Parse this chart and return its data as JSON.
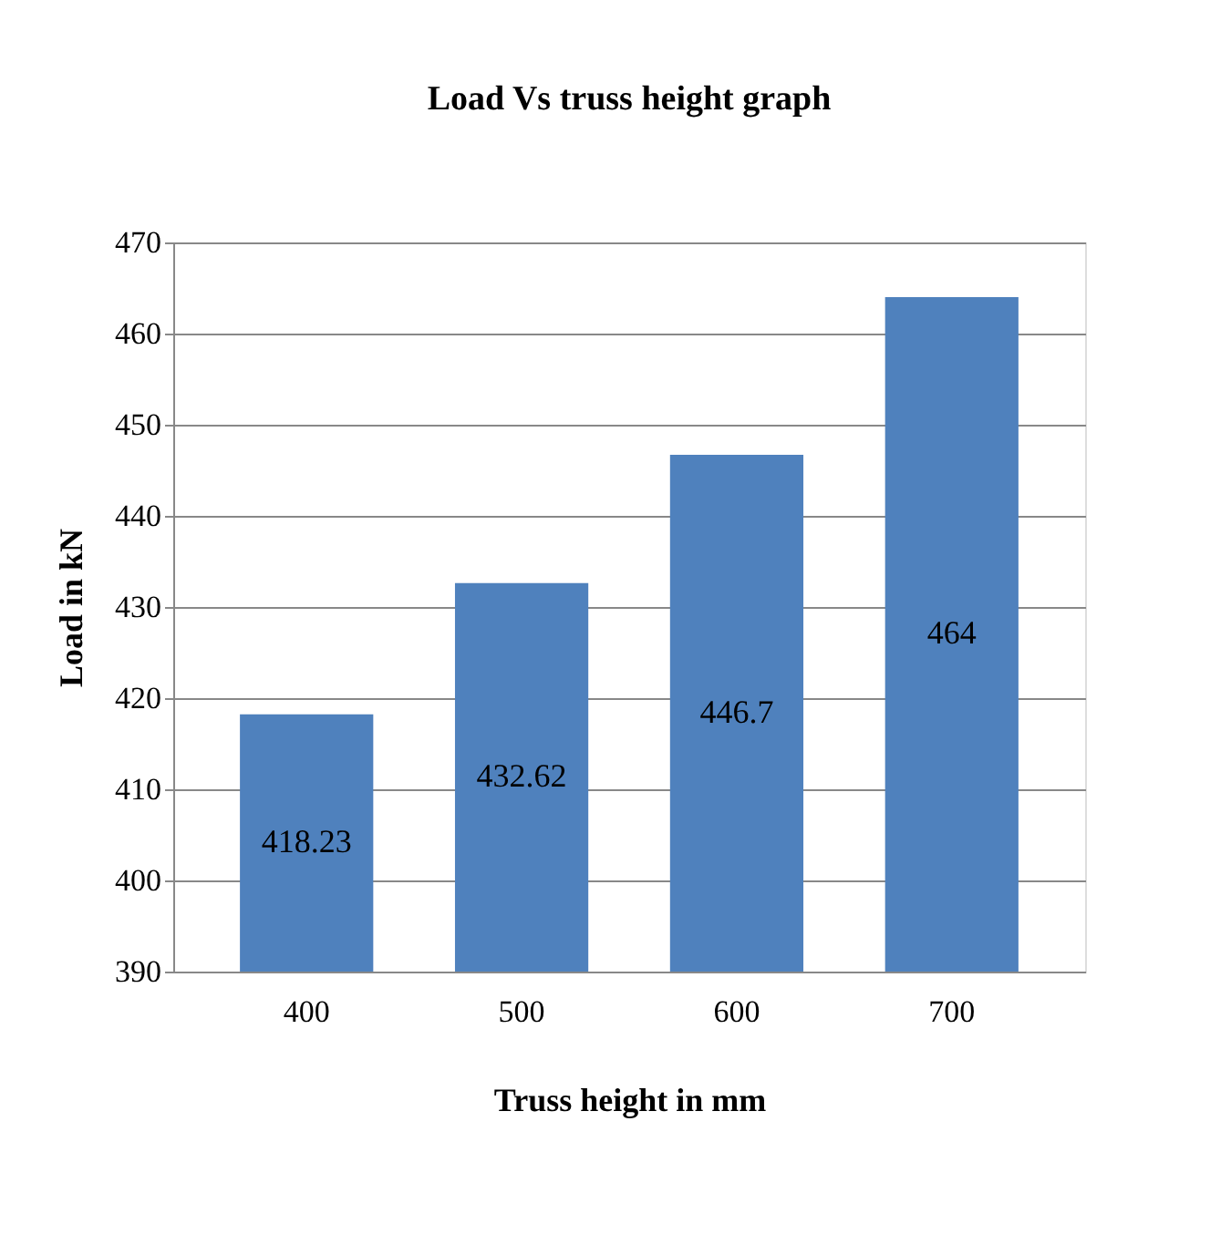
{
  "chart_data": {
    "type": "bar",
    "title": "Load Vs truss height graph",
    "xlabel": "Truss height in mm",
    "ylabel": "Load in kN",
    "categories": [
      "400",
      "500",
      "600",
      "700"
    ],
    "values": [
      418.23,
      432.62,
      446.7,
      464
    ],
    "color": "#4f81bd",
    "value_labels": [
      "418.23",
      "432.62",
      "446.7",
      "464"
    ],
    "ylim": [
      390,
      470
    ],
    "yticks": [
      390,
      400,
      410,
      420,
      430,
      440,
      450,
      460,
      470
    ],
    "grid": "y"
  }
}
